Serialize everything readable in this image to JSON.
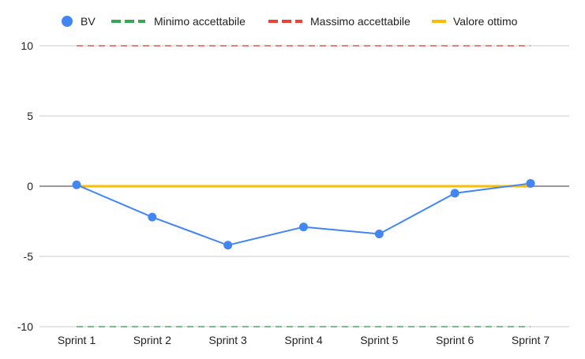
{
  "chart_data": {
    "type": "line",
    "title": "",
    "xlabel": "",
    "ylabel": "",
    "categories": [
      "Sprint 1",
      "Sprint 2",
      "Sprint 3",
      "Sprint 4",
      "Sprint 5",
      "Sprint 6",
      "Sprint 7"
    ],
    "ylim": [
      -10,
      10
    ],
    "yticks": [
      10,
      5,
      0,
      -5,
      -10
    ],
    "grid": true,
    "legend_position": "top",
    "series": [
      {
        "name": "BV",
        "style": "line-with-points",
        "color": "#4285f4",
        "values": [
          0.1,
          -2.2,
          -4.2,
          -2.9,
          -3.4,
          -0.5,
          0.2
        ]
      },
      {
        "name": "Minimo accettabile",
        "style": "dashed",
        "color": "#34a853",
        "values": [
          -10,
          -10,
          -10,
          -10,
          -10,
          -10,
          -10
        ]
      },
      {
        "name": "Massimo accettabile",
        "style": "dashed",
        "color": "#ea4335",
        "values": [
          10,
          10,
          10,
          10,
          10,
          10,
          10
        ]
      },
      {
        "name": "Valore ottimo",
        "style": "solid",
        "color": "#fbbc04",
        "values": [
          0,
          0,
          0,
          0,
          0,
          0,
          0
        ]
      }
    ]
  }
}
